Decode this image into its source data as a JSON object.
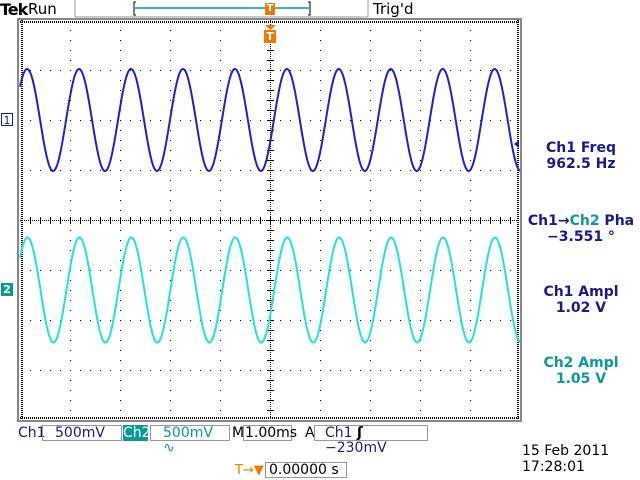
{
  "header": {
    "brand": "Tek",
    "acq_state": "Run",
    "trigger_status": "Trig'd",
    "trigger_marker": "T"
  },
  "channels": [
    {
      "label": "1",
      "scale": "500mV",
      "color": "#2020d0",
      "frequency_hz": 962.5,
      "amplitude_v": 1.02,
      "offset_div": 2
    },
    {
      "label": "2",
      "scale": "500mV",
      "color": "#20e0e8",
      "frequency_hz": 962.5,
      "amplitude_v": 1.05,
      "offset_div": -1.4,
      "phase_deg": -3.551
    }
  ],
  "measurements": [
    {
      "name": "Ch1 Freq",
      "value": "962.5 Hz",
      "color": "#1a1a8c"
    },
    {
      "name_a": "Ch1",
      "arrow": "→",
      "name_b": "Ch2",
      "name_c": " Pha",
      "value": "−3.551 °"
    },
    {
      "name": "Ch1 Ampl",
      "value": "1.02 V",
      "color": "#1a1a8c"
    },
    {
      "name": "Ch2 Ampl",
      "value": "1.05 V",
      "color": "#0a9a9a"
    }
  ],
  "status_bar": {
    "ch1_label": "Ch1",
    "ch1_scale": "500mV",
    "ch2_label": "Ch2",
    "ch2_scale": "500mV",
    "ch2_bw_icon": "∿",
    "main_label": "M",
    "timebase": "1.00ms",
    "trigger_mode": "A",
    "trigger_source": "Ch1",
    "trigger_slope_icon": "ʃ",
    "trigger_level": "−230mV"
  },
  "trigger_position": {
    "value": "0.00000 s",
    "icon": "T→▼"
  },
  "date": "15 Feb  2011",
  "time": "17:28:01",
  "display": {
    "h_divs": 10,
    "v_divs": 8,
    "time_per_div_ms": 1.0,
    "volts_per_div": 0.5,
    "trigger_level_v": -0.23
  }
}
